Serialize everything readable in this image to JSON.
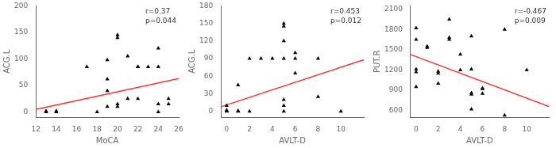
{
  "chart_data": [
    {
      "type": "scatter",
      "x_label": "MoCA",
      "y_label": "ACG.L",
      "xlim": [
        12,
        26
      ],
      "ylim": [
        -10,
        200
      ],
      "xticks": [
        12,
        14,
        16,
        18,
        20,
        22,
        24,
        26
      ],
      "yticks": [
        0,
        50,
        100,
        150,
        200
      ],
      "annotation": "r=0.37\np=0.044",
      "grid": false,
      "series": [
        {
          "type": "scatter",
          "color": "black",
          "marker": "triangle",
          "x": [
            13,
            13,
            14,
            14,
            17,
            18,
            19,
            19,
            19,
            19,
            20,
            20,
            20,
            20,
            21,
            21,
            22,
            22,
            22,
            23,
            24,
            24,
            24,
            24,
            25,
            25
          ],
          "values": [
            0,
            2,
            0,
            2,
            85,
            0,
            98,
            62,
            40,
            10,
            145,
            140,
            15,
            10,
            105,
            25,
            85,
            85,
            25,
            85,
            120,
            85,
            15,
            0,
            25,
            15
          ]
        },
        {
          "type": "line",
          "color": "#FF3333",
          "line_style": "solid",
          "x": [
            12,
            26
          ],
          "values": [
            5,
            63
          ]
        }
      ]
    },
    {
      "type": "scatter",
      "x_label": "AVLT-D",
      "y_label": "ACG.L",
      "xlim": [
        -0.5,
        12
      ],
      "ylim": [
        -10,
        180
      ],
      "xticks": [
        0,
        2,
        4,
        6,
        8,
        10
      ],
      "yticks": [
        0,
        30,
        60,
        90,
        120,
        150,
        180
      ],
      "annotation": "r=0.453\np=0.012",
      "grid": false,
      "series": [
        {
          "type": "scatter",
          "color": "black",
          "marker": "triangle",
          "x": [
            0,
            0,
            0,
            0,
            1,
            1,
            1,
            2,
            2,
            3,
            4,
            5,
            5,
            5,
            5,
            5,
            5,
            5,
            6,
            6,
            6,
            8,
            8,
            10
          ],
          "values": [
            10,
            0,
            2,
            1,
            45,
            1,
            0,
            90,
            0,
            90,
            90,
            150,
            145,
            120,
            90,
            20,
            10,
            0,
            100,
            65,
            90,
            90,
            25,
            0
          ]
        },
        {
          "type": "line",
          "color": "#FF3333",
          "line_style": "solid",
          "x": [
            -0.5,
            12
          ],
          "values": [
            8,
            88
          ]
        }
      ]
    },
    {
      "type": "scatter",
      "x_label": "AVLT-D",
      "y_label": "PUT.R",
      "xlim": [
        -0.5,
        12
      ],
      "ylim": [
        500,
        2150
      ],
      "xticks": [
        0,
        2,
        4,
        6,
        8,
        10
      ],
      "yticks": [
        600,
        900,
        1200,
        1500,
        1800,
        2100
      ],
      "annotation": "r=-0.467\np=0.009",
      "grid": false,
      "series": [
        {
          "type": "scatter",
          "color": "black",
          "marker": "triangle",
          "x": [
            0,
            0,
            0,
            0,
            0,
            1,
            1,
            2,
            2,
            2,
            3,
            3,
            3,
            4,
            4,
            5,
            5,
            5,
            5,
            5,
            6,
            6,
            6,
            8,
            8,
            10
          ],
          "values": [
            1820,
            1650,
            1210,
            1170,
            950,
            1550,
            1530,
            1180,
            1150,
            1000,
            1950,
            1680,
            1650,
            1430,
            1200,
            1700,
            1210,
            860,
            840,
            620,
            930,
            920,
            850,
            1800,
            530,
            1200
          ]
        },
        {
          "type": "line",
          "color": "#FF3333",
          "line_style": "solid",
          "x": [
            -0.5,
            12
          ],
          "values": [
            1430,
            660
          ]
        }
      ]
    }
  ]
}
